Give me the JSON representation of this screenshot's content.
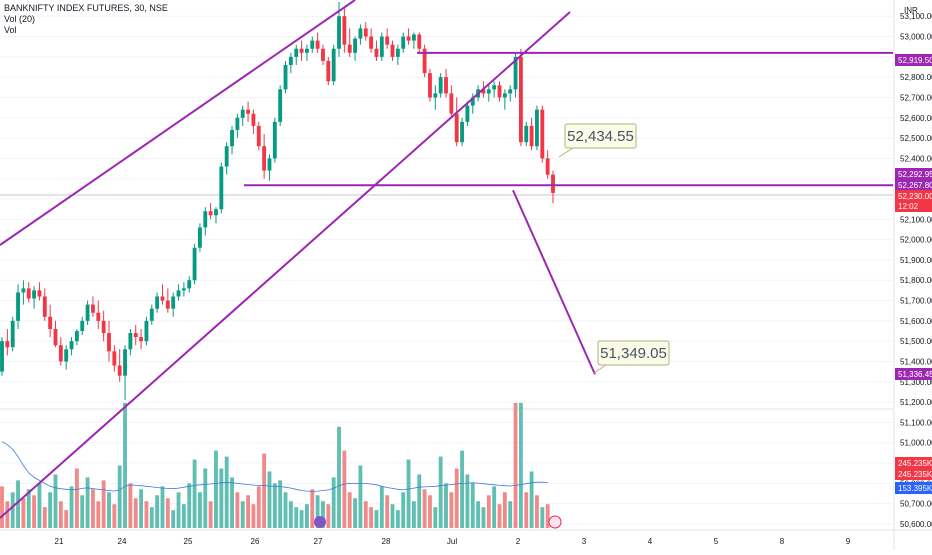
{
  "header": {
    "symbol": "BANKNIFTY INDEX FUTURES, 30, NSE",
    "volume_indicator": "Vol (20)",
    "volume_label": "Vol"
  },
  "axis": {
    "currency": "INR",
    "date_labels": [
      "21",
      "24",
      "25",
      "26",
      "27",
      "28",
      "Jul",
      "2",
      "3",
      "4",
      "5",
      "8",
      "9"
    ]
  },
  "price_tags": [
    {
      "value": "52,919.50",
      "color": "#9c27b0"
    },
    {
      "value": "52,292.95",
      "color": "#9c27b0"
    },
    {
      "value": "52,267.80",
      "color": "#9c27b0"
    },
    {
      "value": "52,230.00",
      "color": "#f23645"
    },
    {
      "value": "12:02",
      "color": "#f23645"
    },
    {
      "value": "51,336.45",
      "color": "#9c27b0"
    }
  ],
  "volume_tags": [
    {
      "value": "245.235K",
      "color": "#f23645"
    },
    {
      "value": "245.235K",
      "color": "#f23645"
    },
    {
      "value": "153.395K",
      "color": "#2962ff"
    }
  ],
  "annotations": {
    "target_high": "52,434.55",
    "target_low": "51,349.05"
  },
  "chart_data": {
    "type": "candlestick",
    "y_axis": {
      "ticks": [
        53100,
        53000,
        52900,
        52800,
        52700,
        52600,
        52500,
        52400,
        52300,
        52200,
        52100,
        52000,
        51900,
        51800,
        51700,
        51600,
        51500,
        51400,
        51300,
        51200,
        51100,
        51000,
        50900,
        50800,
        50700,
        50600
      ],
      "tick_labels": [
        "53,100.00",
        "53,000.00",
        "52,900.00",
        "52,800.00",
        "52,700.00",
        "52,600.00",
        "52,500.00",
        "52,400.00",
        "52,300.00",
        "52,200.00",
        "52,100.00",
        "52,000.00",
        "51,900.00",
        "51,800.00",
        "51,700.00",
        "51,600.00",
        "51,500.00",
        "51,400.00",
        "51,300.00",
        "51,200.00",
        "51,100.00",
        "51,000.00",
        "50,900.00",
        "50,800.00",
        "50,700.00",
        "50,600.00"
      ],
      "range": [
        50580,
        53180
      ]
    },
    "candles": [
      [
        51350,
        51520,
        51330,
        51500
      ],
      [
        51500,
        51560,
        51430,
        51470
      ],
      [
        51470,
        51620,
        51450,
        51600
      ],
      [
        51600,
        51780,
        51560,
        51740
      ],
      [
        51740,
        51800,
        51680,
        51760
      ],
      [
        51760,
        51790,
        51690,
        51710
      ],
      [
        51710,
        51770,
        51660,
        51750
      ],
      [
        51750,
        51790,
        51700,
        51720
      ],
      [
        51720,
        51760,
        51600,
        51620
      ],
      [
        51620,
        51680,
        51520,
        51560
      ],
      [
        51560,
        51600,
        51470,
        51480
      ],
      [
        51480,
        51520,
        51380,
        51400
      ],
      [
        51400,
        51480,
        51360,
        51460
      ],
      [
        51460,
        51520,
        51430,
        51500
      ],
      [
        51500,
        51560,
        51480,
        51550
      ],
      [
        51550,
        51620,
        51530,
        51600
      ],
      [
        51600,
        51700,
        51580,
        51680
      ],
      [
        51680,
        51720,
        51620,
        51640
      ],
      [
        51640,
        51700,
        51560,
        51600
      ],
      [
        51600,
        51650,
        51500,
        51540
      ],
      [
        51540,
        51600,
        51400,
        51450
      ],
      [
        51450,
        51480,
        51350,
        51380
      ],
      [
        51380,
        51460,
        51300,
        51330
      ],
      [
        51330,
        51480,
        51210,
        51460
      ],
      [
        51460,
        51560,
        51430,
        51540
      ],
      [
        51540,
        51580,
        51480,
        51520
      ],
      [
        51520,
        51560,
        51460,
        51500
      ],
      [
        51500,
        51620,
        51480,
        51600
      ],
      [
        51600,
        51680,
        51580,
        51660
      ],
      [
        51660,
        51740,
        51640,
        51720
      ],
      [
        51720,
        51780,
        51680,
        51700
      ],
      [
        51700,
        51760,
        51640,
        51660
      ],
      [
        51660,
        51740,
        51620,
        51720
      ],
      [
        51720,
        51780,
        51700,
        51750
      ],
      [
        51750,
        51790,
        51720,
        51760
      ],
      [
        51760,
        51820,
        51740,
        51800
      ],
      [
        51800,
        51980,
        51780,
        51960
      ],
      [
        51960,
        52080,
        51940,
        52060
      ],
      [
        52060,
        52160,
        52020,
        52140
      ],
      [
        52140,
        52180,
        52100,
        52120
      ],
      [
        52120,
        52160,
        52080,
        52150
      ],
      [
        52150,
        52380,
        52130,
        52360
      ],
      [
        52360,
        52480,
        52320,
        52460
      ],
      [
        52460,
        52560,
        52420,
        52540
      ],
      [
        52540,
        52620,
        52500,
        52600
      ],
      [
        52600,
        52660,
        52560,
        52640
      ],
      [
        52640,
        52680,
        52580,
        52620
      ],
      [
        52620,
        52640,
        52520,
        52560
      ],
      [
        52560,
        52580,
        52440,
        52460
      ],
      [
        52460,
        52520,
        52300,
        52340
      ],
      [
        52340,
        52420,
        52290,
        52400
      ],
      [
        52400,
        52600,
        52380,
        52580
      ],
      [
        52580,
        52760,
        52560,
        52740
      ],
      [
        52740,
        52880,
        52720,
        52860
      ],
      [
        52860,
        52920,
        52820,
        52900
      ],
      [
        52900,
        52960,
        52860,
        52940
      ],
      [
        52940,
        52980,
        52880,
        52920
      ],
      [
        52920,
        52960,
        52880,
        52940
      ],
      [
        52940,
        53000,
        52920,
        52980
      ],
      [
        52980,
        53020,
        52920,
        52940
      ],
      [
        52940,
        52960,
        52860,
        52880
      ],
      [
        52880,
        52900,
        52760,
        52780
      ],
      [
        52780,
        52960,
        52760,
        52940
      ],
      [
        52940,
        53170,
        52900,
        53100
      ],
      [
        53100,
        53140,
        52920,
        52960
      ],
      [
        52960,
        53040,
        52900,
        52920
      ],
      [
        52920,
        53000,
        52880,
        52990
      ],
      [
        52990,
        53060,
        52960,
        53040
      ],
      [
        53040,
        53070,
        52980,
        53000
      ],
      [
        53000,
        53040,
        52920,
        52940
      ],
      [
        52940,
        52980,
        52880,
        52900
      ],
      [
        52900,
        53020,
        52880,
        53000
      ],
      [
        53000,
        53040,
        52940,
        52960
      ],
      [
        52960,
        52980,
        52880,
        52900
      ],
      [
        52900,
        52960,
        52860,
        52940
      ],
      [
        52940,
        53020,
        52920,
        53000
      ],
      [
        53000,
        53040,
        52960,
        52980
      ],
      [
        52980,
        53020,
        52940,
        53010
      ],
      [
        53010,
        53020,
        52920,
        52940
      ],
      [
        52940,
        52960,
        52800,
        52820
      ],
      [
        52820,
        52840,
        52680,
        52700
      ],
      [
        52700,
        52760,
        52640,
        52720
      ],
      [
        52720,
        52820,
        52700,
        52800
      ],
      [
        52800,
        52840,
        52700,
        52720
      ],
      [
        52720,
        52760,
        52600,
        52620
      ],
      [
        52620,
        52700,
        52460,
        52480
      ],
      [
        52480,
        52600,
        52460,
        52580
      ],
      [
        52580,
        52680,
        52560,
        52660
      ],
      [
        52660,
        52720,
        52620,
        52700
      ],
      [
        52700,
        52760,
        52680,
        52740
      ],
      [
        52740,
        52780,
        52700,
        52720
      ],
      [
        52720,
        52760,
        52680,
        52740
      ],
      [
        52740,
        52780,
        52700,
        52760
      ],
      [
        52760,
        52780,
        52680,
        52700
      ],
      [
        52700,
        52740,
        52640,
        52720
      ],
      [
        52720,
        52760,
        52680,
        52740
      ],
      [
        52740,
        52920,
        52700,
        52900
      ],
      [
        52900,
        52940,
        52460,
        52480
      ],
      [
        52480,
        52580,
        52460,
        52560
      ],
      [
        52560,
        52600,
        52440,
        52460
      ],
      [
        52460,
        52660,
        52440,
        52640
      ],
      [
        52640,
        52660,
        52380,
        52400
      ],
      [
        52400,
        52440,
        52300,
        52320
      ],
      [
        52320,
        52340,
        52180,
        52230
      ]
    ],
    "volume": {
      "ylim": [
        0,
        420000
      ],
      "bars": [
        [
          140000,
          0
        ],
        [
          90000,
          0
        ],
        [
          120000,
          1
        ],
        [
          160000,
          1
        ],
        [
          100000,
          0
        ],
        [
          130000,
          1
        ],
        [
          110000,
          0
        ],
        [
          150000,
          1
        ],
        [
          70000,
          0
        ],
        [
          120000,
          1
        ],
        [
          180000,
          1
        ],
        [
          90000,
          0
        ],
        [
          60000,
          0
        ],
        [
          140000,
          1
        ],
        [
          200000,
          0
        ],
        [
          110000,
          1
        ],
        [
          170000,
          1
        ],
        [
          130000,
          0
        ],
        [
          90000,
          0
        ],
        [
          160000,
          0
        ],
        [
          120000,
          1
        ],
        [
          80000,
          0
        ],
        [
          210000,
          1
        ],
        [
          420000,
          1
        ],
        [
          150000,
          0
        ],
        [
          100000,
          0
        ],
        [
          130000,
          1
        ],
        [
          90000,
          0
        ],
        [
          70000,
          1
        ],
        [
          110000,
          1
        ],
        [
          140000,
          1
        ],
        [
          100000,
          0
        ],
        [
          60000,
          1
        ],
        [
          120000,
          1
        ],
        [
          80000,
          1
        ],
        [
          150000,
          1
        ],
        [
          230000,
          1
        ],
        [
          120000,
          1
        ],
        [
          200000,
          1
        ],
        [
          90000,
          0
        ],
        [
          260000,
          1
        ],
        [
          200000,
          1
        ],
        [
          240000,
          1
        ],
        [
          170000,
          1
        ],
        [
          120000,
          0
        ],
        [
          90000,
          1
        ],
        [
          110000,
          0
        ],
        [
          80000,
          0
        ],
        [
          140000,
          0
        ],
        [
          250000,
          0
        ],
        [
          190000,
          1
        ],
        [
          150000,
          1
        ],
        [
          160000,
          1
        ],
        [
          120000,
          1
        ],
        [
          90000,
          1
        ],
        [
          70000,
          1
        ],
        [
          60000,
          1
        ],
        [
          80000,
          1
        ],
        [
          130000,
          0
        ],
        [
          110000,
          1
        ],
        [
          90000,
          1
        ],
        [
          80000,
          0
        ],
        [
          170000,
          1
        ],
        [
          340000,
          1
        ],
        [
          260000,
          0
        ],
        [
          120000,
          0
        ],
        [
          100000,
          1
        ],
        [
          210000,
          1
        ],
        [
          90000,
          0
        ],
        [
          70000,
          0
        ],
        [
          60000,
          1
        ],
        [
          140000,
          1
        ],
        [
          110000,
          0
        ],
        [
          80000,
          1
        ],
        [
          60000,
          1
        ],
        [
          120000,
          1
        ],
        [
          230000,
          1
        ],
        [
          90000,
          1
        ],
        [
          180000,
          1
        ],
        [
          130000,
          0
        ],
        [
          110000,
          0
        ],
        [
          70000,
          1
        ],
        [
          240000,
          1
        ],
        [
          150000,
          1
        ],
        [
          120000,
          0
        ],
        [
          200000,
          0
        ],
        [
          260000,
          1
        ],
        [
          180000,
          1
        ],
        [
          150000,
          1
        ],
        [
          90000,
          1
        ],
        [
          70000,
          1
        ],
        [
          110000,
          0
        ],
        [
          140000,
          1
        ],
        [
          80000,
          0
        ],
        [
          120000,
          0
        ],
        [
          90000,
          1
        ],
        [
          420000,
          0
        ],
        [
          420000,
          1
        ],
        [
          120000,
          0
        ],
        [
          190000,
          1
        ],
        [
          110000,
          0
        ],
        [
          70000,
          1
        ],
        [
          80000,
          0
        ]
      ],
      "ma20": [
        290000,
        280000,
        265000,
        240000,
        210000,
        185000,
        170000,
        160000,
        150000,
        140000,
        135000,
        132000,
        130000,
        128000,
        130000,
        133000,
        135000,
        132000,
        130000,
        128000,
        126000,
        124000,
        128000,
        140000,
        145000,
        143000,
        142000,
        140000,
        138000,
        136000,
        134000,
        133000,
        132000,
        134000,
        137000,
        140000,
        143000,
        145000,
        147000,
        148000,
        150000,
        152000,
        153000,
        152000,
        150000,
        148000,
        146000,
        144000,
        143000,
        142000,
        141000,
        140000,
        139000,
        137000,
        134000,
        130000,
        126000,
        124000,
        123000,
        124000,
        126000,
        128000,
        133000,
        142000,
        148000,
        150000,
        149000,
        150000,
        150000,
        148000,
        145000,
        140000,
        136000,
        133000,
        130000,
        128000,
        131000,
        134000,
        137000,
        138000,
        139000,
        140000,
        142000,
        144000,
        146000,
        148000,
        150000,
        151000,
        152000,
        151000,
        149000,
        147000,
        145000,
        143000,
        142000,
        141000,
        143000,
        146000,
        149000,
        152000,
        154000,
        154000,
        153000
      ]
    },
    "x_labels": [
      "21",
      "24",
      "25",
      "26",
      "27",
      "28",
      "Jul",
      "2",
      "3",
      "4",
      "5",
      "8",
      "9"
    ],
    "horizontal_levels": [
      52919.5,
      52267.8
    ],
    "projection": {
      "from_price": 52267.8,
      "to_price": 51336.45
    }
  }
}
